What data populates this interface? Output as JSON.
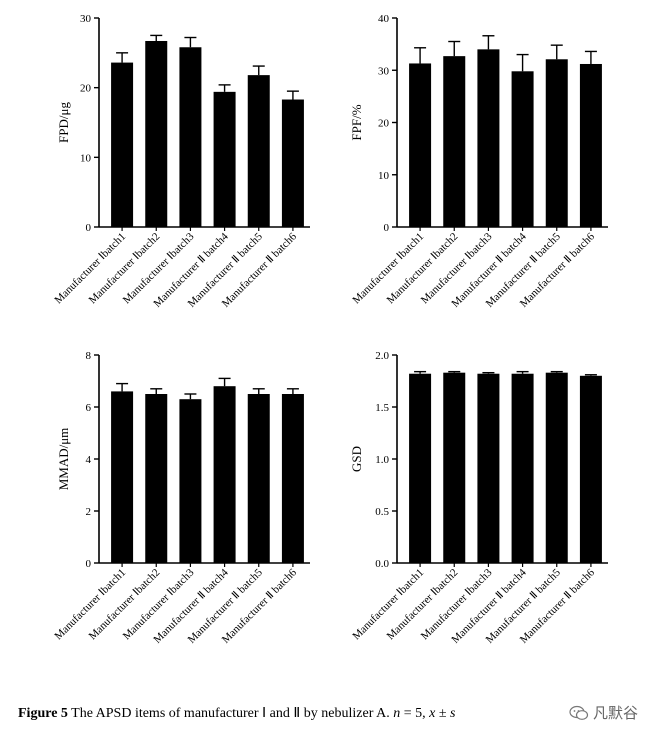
{
  "chart_data": [
    {
      "type": "bar",
      "ylabel": "FPD/μg",
      "ylim": [
        0,
        30
      ],
      "yticks": [
        0,
        10,
        20,
        30
      ],
      "categories": [
        "Manufacturer Ⅰbatch1",
        "Manufacturer Ⅰbatch2",
        "Manufacturer Ⅰbatch3",
        "Manufacturer Ⅱ batch4",
        "Manufacturer Ⅱ batch5",
        "Manufacturer Ⅱ batch6"
      ],
      "values": [
        23.6,
        26.7,
        25.8,
        19.4,
        21.8,
        18.3
      ],
      "errors": [
        1.4,
        0.8,
        1.4,
        1.0,
        1.3,
        1.2
      ]
    },
    {
      "type": "bar",
      "ylabel": "FPF/%",
      "ylim": [
        0,
        40
      ],
      "yticks": [
        0,
        10,
        20,
        30,
        40
      ],
      "categories": [
        "Manufacturer Ⅰbatch1",
        "Manufacturer Ⅰbatch2",
        "Manufacturer Ⅰbatch3",
        "Manufacturer Ⅱ batch4",
        "Manufacturer Ⅱ batch5",
        "Manufacturer Ⅱ batch6"
      ],
      "values": [
        31.3,
        32.7,
        34.0,
        29.8,
        32.1,
        31.2
      ],
      "errors": [
        3.0,
        2.8,
        2.6,
        3.2,
        2.7,
        2.4
      ]
    },
    {
      "type": "bar",
      "ylabel": "MMAD/μm",
      "ylim": [
        0,
        8
      ],
      "yticks": [
        0,
        2,
        4,
        6,
        8
      ],
      "categories": [
        "Manufacturer Ⅰbatch1",
        "Manufacturer Ⅰbatch2",
        "Manufacturer Ⅰbatch3",
        "Manufacturer Ⅱ batch4",
        "Manufacturer Ⅱ batch5",
        "Manufacturer Ⅱ batch6"
      ],
      "values": [
        6.6,
        6.5,
        6.3,
        6.8,
        6.5,
        6.5
      ],
      "errors": [
        0.3,
        0.2,
        0.2,
        0.3,
        0.2,
        0.2
      ]
    },
    {
      "type": "bar",
      "ylabel": "GSD",
      "ylim": [
        0,
        2.0
      ],
      "yticks": [
        0.0,
        0.5,
        1.0,
        1.5,
        2.0
      ],
      "tick_decimals": 1,
      "categories": [
        "Manufacturer Ⅰbatch1",
        "Manufacturer Ⅰbatch2",
        "Manufacturer Ⅰbatch3",
        "Manufacturer Ⅱ batch4",
        "Manufacturer Ⅱ batch5",
        "Manufacturer Ⅱ batch6"
      ],
      "values": [
        1.82,
        1.83,
        1.82,
        1.82,
        1.83,
        1.8
      ],
      "errors": [
        0.02,
        0.01,
        0.01,
        0.02,
        0.01,
        0.01
      ]
    }
  ],
  "caption": {
    "label": "Figure 5",
    "text": " The APSD items of manufacturer Ⅰ and Ⅱ by nebulizer A. ",
    "stats_var": "n",
    "stats_rest": " = 5, ",
    "stats_mean": "x",
    "stats_pm": " ± ",
    "stats_sd": "s"
  },
  "watermark": {
    "text": "凡默谷"
  }
}
